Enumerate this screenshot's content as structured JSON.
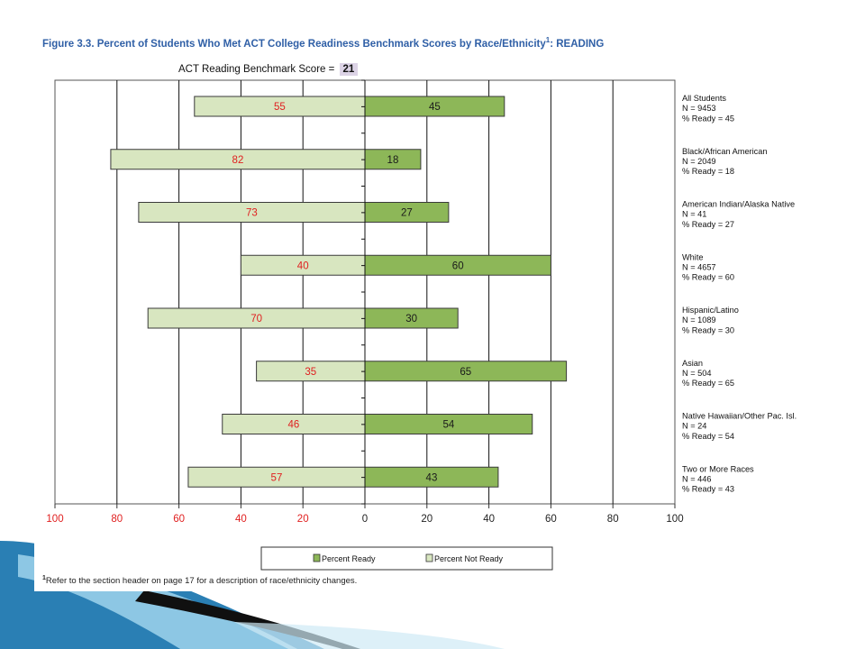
{
  "figure": {
    "title": "Figure 3.3.  Percent of Students Who Met ACT College Readiness Benchmark Scores by Race/Ethnicity",
    "title_sup": "1",
    "title_suffix": ": READING",
    "benchmark_label": "ACT Reading Benchmark Score = ",
    "benchmark_value": "21",
    "footnote_sup": "1",
    "footnote": "Refer to the section header on page 17 for a description of race/ethnicity changes."
  },
  "chart_data": {
    "type": "bar",
    "orientation": "horizontal-diverging",
    "xlim": [
      -100,
      100
    ],
    "x_tick_values": [
      -100,
      -80,
      -60,
      -40,
      -20,
      0,
      20,
      40,
      60,
      80,
      100
    ],
    "x_tick_labels": [
      "100",
      "80",
      "60",
      "40",
      "20",
      "0",
      "20",
      "40",
      "60",
      "80",
      "100"
    ],
    "grid": "vertical lines at 20-point intervals",
    "legend_position": "bottom",
    "categories": [
      [
        "All Students",
        "N = 9453",
        "% Ready = 45"
      ],
      [
        "Black/African American",
        "N = 2049",
        "% Ready = 18"
      ],
      [
        "American Indian/Alaska Native",
        "N = 41",
        "% Ready = 27"
      ],
      [
        "White",
        "N = 4657",
        "% Ready = 60"
      ],
      [
        "Hispanic/Latino",
        "N = 1089",
        "% Ready = 30"
      ],
      [
        "Asian",
        "N = 504",
        "% Ready = 65"
      ],
      [
        "Native Hawaiian/Other Pac. Isl.",
        "N = 24",
        "% Ready = 54"
      ],
      [
        "Two or More Races",
        "N = 446",
        "% Ready = 43"
      ]
    ],
    "series": [
      {
        "name": "Percent Ready",
        "values": [
          45,
          18,
          27,
          60,
          30,
          65,
          54,
          43
        ],
        "color": "#8db758",
        "label_color": "#1a1a1a"
      },
      {
        "name": "Percent Not Ready",
        "values": [
          55,
          82,
          73,
          40,
          70,
          35,
          46,
          57
        ],
        "color": "#d8e6c0",
        "label_color": "#e02020"
      }
    ],
    "colors": {
      "bar_border": "#3a3a3a",
      "negative_tick_label": "#e02020",
      "positive_tick_label": "#222222"
    }
  }
}
